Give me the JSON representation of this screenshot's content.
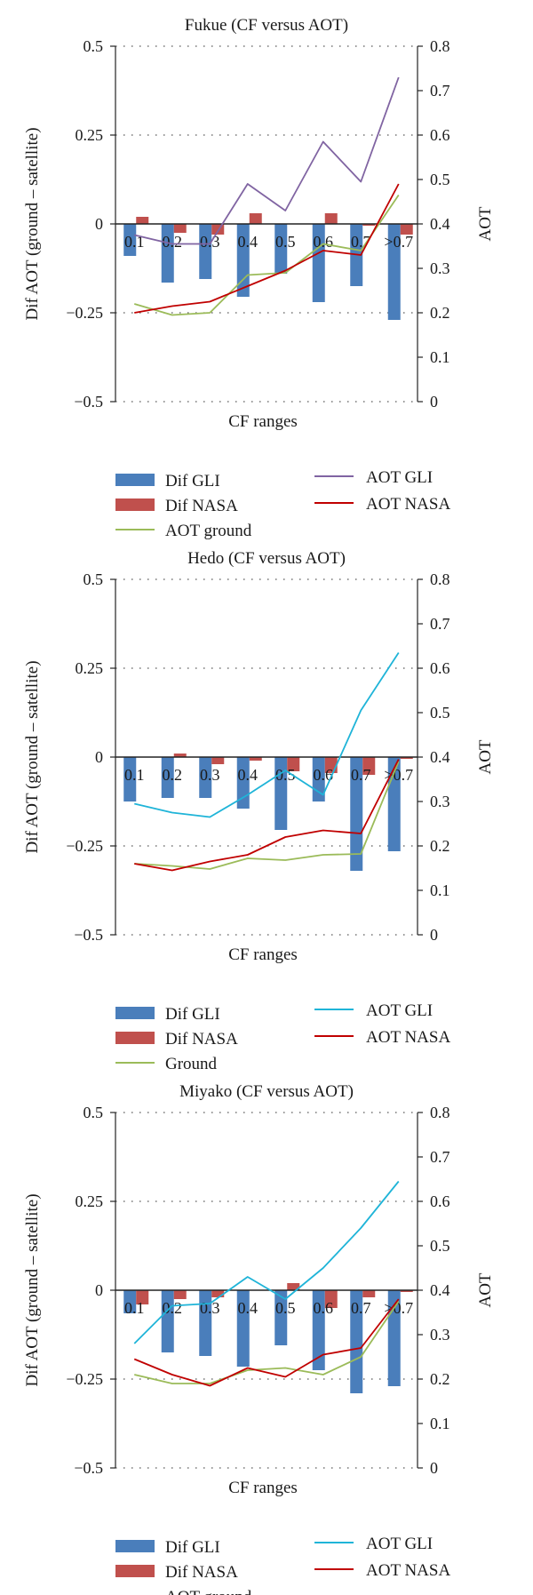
{
  "chart_data": [
    {
      "type": "bar",
      "title": "Fukue (CF versus AOT)",
      "xlabel": "CF ranges",
      "ylabel": "Dif AOT (ground – satellite)",
      "y2label": "AOT",
      "categories": [
        "0.1",
        "0.2",
        "0.3",
        "0.4",
        "0.5",
        "0.6",
        "0.7",
        ">0.7"
      ],
      "ylim": [
        -0.5,
        0.5
      ],
      "y2lim": [
        0,
        0.8
      ],
      "yticks": [
        "0.5",
        "0.25",
        "0",
        "−0.25",
        "−0.5"
      ],
      "y2ticks": [
        "0.8",
        "0.7",
        "0.6",
        "0.5",
        "0.4",
        "0.3",
        "0.2",
        "0.1",
        "0"
      ],
      "grid": "dotted horizontal",
      "series": [
        {
          "name": "Dif GLI",
          "kind": "bar",
          "color": "#4a7ebb",
          "values": [
            -0.09,
            -0.165,
            -0.155,
            -0.205,
            -0.14,
            -0.22,
            -0.175,
            -0.27
          ]
        },
        {
          "name": "Dif NASA",
          "kind": "bar",
          "color": "#c0504d",
          "values": [
            0.02,
            -0.025,
            -0.03,
            0.03,
            0.0,
            0.03,
            -0.005,
            -0.03
          ]
        },
        {
          "name": "AOT ground",
          "kind": "line",
          "axis": "right",
          "color": "#9bbb59",
          "values": [
            0.22,
            0.195,
            0.2,
            0.285,
            0.29,
            0.355,
            0.34,
            0.465
          ]
        },
        {
          "name": "AOT GLI",
          "kind": "line",
          "axis": "right",
          "color": "#8064a2",
          "values": [
            0.375,
            0.355,
            0.355,
            0.49,
            0.43,
            0.585,
            0.495,
            0.73
          ]
        },
        {
          "name": "AOT NASA",
          "kind": "line",
          "axis": "right",
          "color": "#c00000",
          "values": [
            0.2,
            0.215,
            0.225,
            0.26,
            0.295,
            0.34,
            0.33,
            0.49
          ]
        }
      ],
      "legend": {
        "left": [
          "Dif GLI",
          "Dif NASA",
          "AOT ground"
        ],
        "right": [
          "AOT GLI",
          "AOT NASA"
        ]
      }
    },
    {
      "type": "bar",
      "title": "Hedo (CF versus AOT)",
      "xlabel": "CF ranges",
      "ylabel": "Dif AOT (ground – satellite)",
      "y2label": "AOT",
      "categories": [
        "0.1",
        "0.2",
        "0.3",
        "0.4",
        "0.5",
        "0.6",
        "0.7",
        ">0.7"
      ],
      "ylim": [
        -0.5,
        0.5
      ],
      "y2lim": [
        0,
        0.8
      ],
      "yticks": [
        "0.5",
        "0.25",
        "0",
        "−0.25",
        "−0.5"
      ],
      "y2ticks": [
        "0.8",
        "0.7",
        "0.6",
        "0.5",
        "0.4",
        "0.3",
        "0.2",
        "0.1",
        "0"
      ],
      "grid": "dotted horizontal",
      "series": [
        {
          "name": "Dif GLI",
          "kind": "bar",
          "color": "#4a7ebb",
          "values": [
            -0.125,
            -0.115,
            -0.115,
            -0.145,
            -0.205,
            -0.125,
            -0.32,
            -0.265
          ]
        },
        {
          "name": "Dif NASA",
          "kind": "bar",
          "color": "#c0504d",
          "values": [
            0.0,
            0.01,
            -0.02,
            -0.01,
            -0.04,
            -0.045,
            -0.05,
            -0.005
          ]
        },
        {
          "name": "Ground",
          "kind": "line",
          "axis": "right",
          "color": "#9bbb59",
          "values": [
            0.16,
            0.155,
            0.148,
            0.172,
            0.168,
            0.18,
            0.182,
            0.39
          ]
        },
        {
          "name": "AOT GLI",
          "kind": "line",
          "axis": "right",
          "color": "#1fb4d8",
          "values": [
            0.295,
            0.275,
            0.265,
            0.315,
            0.37,
            0.315,
            0.505,
            0.635
          ]
        },
        {
          "name": "AOT NASA",
          "kind": "line",
          "axis": "right",
          "color": "#c00000",
          "values": [
            0.16,
            0.145,
            0.165,
            0.18,
            0.22,
            0.235,
            0.228,
            0.395
          ]
        }
      ],
      "legend": {
        "left": [
          "Dif GLI",
          "Dif NASA",
          "Ground"
        ],
        "right": [
          "AOT GLI",
          "AOT NASA"
        ]
      }
    },
    {
      "type": "bar",
      "title": "Miyako (CF versus AOT)",
      "xlabel": "CF ranges",
      "ylabel": "Dif AOT (ground – satellite)",
      "y2label": "AOT",
      "categories": [
        "0.1",
        "0.2",
        "0.3",
        "0.4",
        "0.5",
        "0.6",
        "0.7",
        ">0.7"
      ],
      "ylim": [
        -0.5,
        0.5
      ],
      "y2lim": [
        0,
        0.8
      ],
      "yticks": [
        "0.5",
        "0.25",
        "0",
        "−0.25",
        "−0.5"
      ],
      "y2ticks": [
        "0.8",
        "0.7",
        "0.6",
        "0.5",
        "0.4",
        "0.3",
        "0.2",
        "0.1",
        "0"
      ],
      "grid": "dotted horizontal",
      "series": [
        {
          "name": "Dif GLI",
          "kind": "bar",
          "color": "#4a7ebb",
          "values": [
            -0.065,
            -0.175,
            -0.185,
            -0.215,
            -0.155,
            -0.225,
            -0.29,
            -0.27
          ]
        },
        {
          "name": "Dif NASA",
          "kind": "bar",
          "color": "#c0504d",
          "values": [
            -0.04,
            -0.025,
            -0.02,
            0.0,
            0.02,
            -0.05,
            -0.02,
            -0.005
          ]
        },
        {
          "name": "AOT ground",
          "kind": "line",
          "axis": "right",
          "color": "#9bbb59",
          "values": [
            0.21,
            0.19,
            0.19,
            0.22,
            0.225,
            0.21,
            0.25,
            0.375
          ]
        },
        {
          "name": "AOT GLI",
          "kind": "line",
          "axis": "right",
          "color": "#1fb4d8",
          "values": [
            0.28,
            0.365,
            0.37,
            0.43,
            0.38,
            0.45,
            0.54,
            0.645
          ]
        },
        {
          "name": "AOT NASA",
          "kind": "line",
          "axis": "right",
          "color": "#c00000",
          "values": [
            0.245,
            0.21,
            0.185,
            0.225,
            0.205,
            0.255,
            0.27,
            0.38
          ]
        }
      ],
      "legend": {
        "left": [
          "Dif GLI",
          "Dif NASA",
          "AOT ground"
        ],
        "right": [
          "AOT GLI",
          "AOT NASA"
        ]
      }
    }
  ]
}
